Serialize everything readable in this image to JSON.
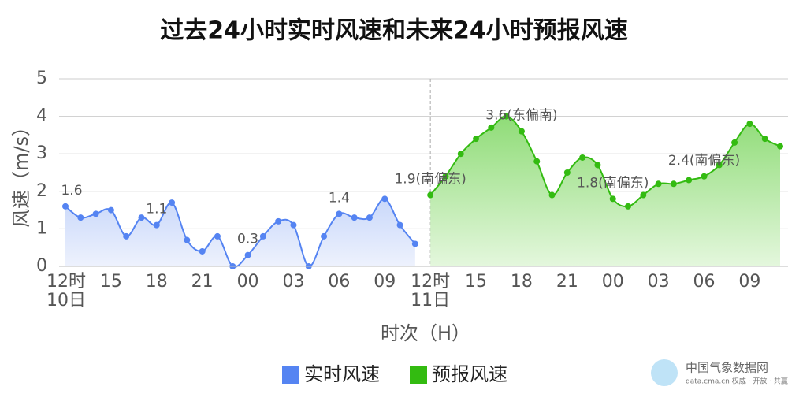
{
  "chart_data": {
    "type": "line",
    "title": "过去24小时实时风速和未来24小时预报风速",
    "y_label": "风速（m/s）",
    "x_label": "时次（H）",
    "categories": [
      "12时\n10日",
      null,
      null,
      "15",
      null,
      null,
      "18",
      null,
      null,
      "21",
      null,
      null,
      "00",
      null,
      null,
      "03",
      null,
      null,
      "06",
      null,
      null,
      "09",
      null,
      null,
      "12时\n11日",
      null,
      null,
      "15",
      null,
      null,
      "18",
      null,
      null,
      "21",
      null,
      null,
      "00",
      null,
      null,
      "03",
      null,
      null,
      "06",
      null,
      null,
      "09",
      null,
      null
    ],
    "series": [
      {
        "name": "实时风速",
        "color": "#5584f2",
        "fill": "#dde6fb",
        "values": [
          1.6,
          1.3,
          1.4,
          1.5,
          0.8,
          1.3,
          1.1,
          1.7,
          0.7,
          0.4,
          0.8,
          0,
          0.3,
          0.8,
          1.2,
          1.1,
          0,
          0.8,
          1.4,
          1.3,
          1.3,
          1.8,
          1.1,
          0.6,
          null,
          null,
          null,
          null,
          null,
          null,
          null,
          null,
          null,
          null,
          null,
          null,
          null,
          null,
          null,
          null,
          null,
          null,
          null,
          null,
          null,
          null,
          null,
          null
        ],
        "value_labels": [
          "1.6",
          null,
          null,
          null,
          null,
          null,
          "1.1",
          null,
          null,
          null,
          null,
          null,
          "0.3",
          null,
          null,
          null,
          null,
          null,
          "1.4",
          null,
          null,
          null,
          null,
          null,
          null,
          null,
          null,
          null,
          null,
          null,
          null,
          null,
          null,
          null,
          null,
          null,
          null,
          null,
          null,
          null,
          null,
          null,
          null,
          null,
          null,
          null,
          null,
          null
        ]
      },
      {
        "name": "预报风速",
        "color": "#33bb11",
        "fill": "#9fe08a",
        "values": [
          null,
          null,
          null,
          null,
          null,
          null,
          null,
          null,
          null,
          null,
          null,
          null,
          null,
          null,
          null,
          null,
          null,
          null,
          null,
          null,
          null,
          null,
          null,
          null,
          1.9,
          2.4,
          3.0,
          3.4,
          3.7,
          4.0,
          3.6,
          2.8,
          1.9,
          2.5,
          2.9,
          2.7,
          1.8,
          1.6,
          1.9,
          2.2,
          2.2,
          2.3,
          2.4,
          2.7,
          3.3,
          3.8,
          3.4,
          3.2
        ],
        "value_labels": [
          null,
          null,
          null,
          null,
          null,
          null,
          null,
          null,
          null,
          null,
          null,
          null,
          null,
          null,
          null,
          null,
          null,
          null,
          null,
          null,
          null,
          null,
          null,
          null,
          "1.9(南偏东)",
          null,
          null,
          null,
          null,
          null,
          "3.6(东偏南)",
          null,
          null,
          null,
          null,
          null,
          "1.8(南偏东)",
          null,
          null,
          null,
          null,
          null,
          "2.4(南偏东)",
          null,
          null,
          null,
          null,
          null
        ]
      }
    ],
    "ylim": [
      0,
      5
    ],
    "yticks": [
      0,
      1,
      2,
      3,
      4,
      5
    ],
    "grid": true,
    "watermark": {
      "name": "中国气象数据网",
      "sub": "data.cma.cn 权威 · 开放 · 共赢"
    }
  }
}
